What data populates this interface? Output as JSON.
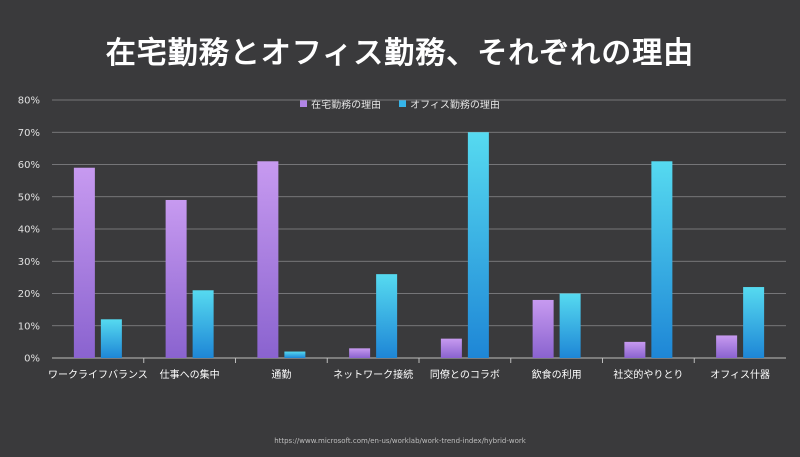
{
  "title": "在宅勤務とオフィス勤務、それぞれの理由",
  "source": "https://www.microsoft.com/en-us/worklab/work-trend-index/hybrid-work",
  "colors": {
    "background": "#3a3a3c",
    "home_top": "#c79af0",
    "home_bottom": "#8a63cf",
    "office_top": "#56daf0",
    "office_bottom": "#1e86d6",
    "grid": "#8a8a8c"
  },
  "chart_data": {
    "type": "bar",
    "categories": [
      "ワークライフバランス",
      "仕事への集中",
      "通勤",
      "ネットワーク接続",
      "同僚とのコラボ",
      "飲食の利用",
      "社交的やりとり",
      "オフィス什器"
    ],
    "series": [
      {
        "name": "在宅勤務の理由",
        "values": [
          59,
          49,
          61,
          3,
          6,
          18,
          5,
          7
        ]
      },
      {
        "name": "オフィス勤務の理由",
        "values": [
          12,
          21,
          2,
          26,
          70,
          20,
          61,
          22
        ]
      }
    ],
    "ylim": [
      0,
      80
    ],
    "yticks": [
      "0%",
      "10%",
      "20%",
      "30%",
      "40%",
      "50%",
      "60%",
      "70%",
      "80%"
    ],
    "grid": true,
    "legend": "top-center"
  }
}
